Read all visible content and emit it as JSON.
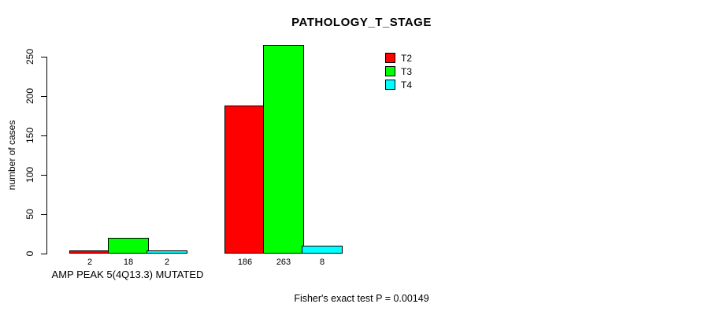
{
  "chart_data": {
    "type": "bar",
    "title": "PATHOLOGY_T_STAGE",
    "ylabel": "number of cases",
    "xlabel": "",
    "ylim": [
      0,
      250
    ],
    "yticks": [
      0,
      50,
      100,
      150,
      200,
      250
    ],
    "grid": false,
    "legend_position": "top-right",
    "categories": [
      "AMP PEAK 5(4Q13.3) MUTATED",
      ""
    ],
    "series": [
      {
        "name": "T2",
        "color": "#FF0000",
        "values": [
          2,
          186
        ]
      },
      {
        "name": "T3",
        "color": "#00FF00",
        "values": [
          18,
          263
        ]
      },
      {
        "name": "T4",
        "color": "#00FFFF",
        "values": [
          2,
          8
        ]
      }
    ],
    "bar_value_labels": [
      [
        2,
        18,
        2
      ],
      [
        186,
        263,
        8
      ]
    ],
    "annotation": "Fisher's exact test P = 0.00149"
  }
}
